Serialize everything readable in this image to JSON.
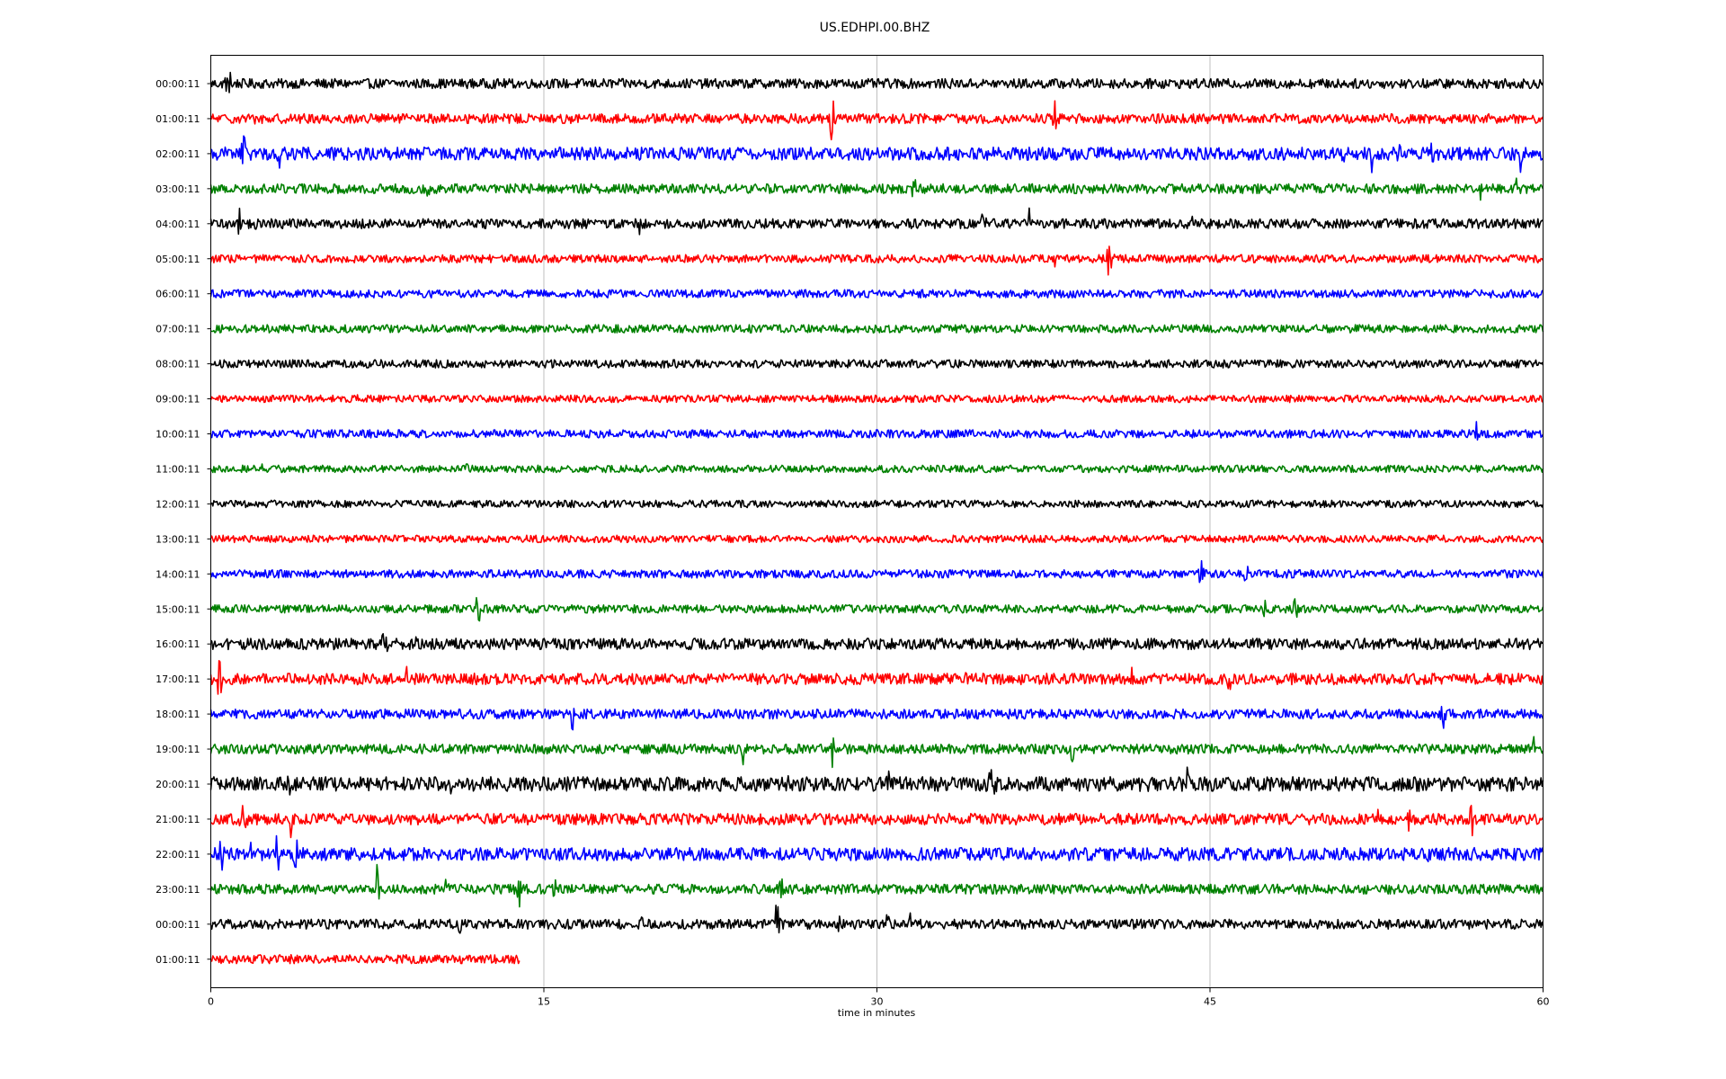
{
  "chart_data": {
    "type": "line",
    "title": "US.EDHPI.00.BHZ",
    "xlabel": "time in minutes",
    "ylabel": "",
    "xlim": [
      0,
      60
    ],
    "x_ticks": [
      "0",
      "15",
      "30",
      "45",
      "60"
    ],
    "x_tick_values": [
      0,
      15,
      30,
      45,
      60
    ],
    "grid": "vertical",
    "row_colors": [
      "#000000",
      "#ff0000",
      "#0000ff",
      "#008000"
    ],
    "rows": [
      {
        "label": "00:00:11",
        "end_minute": 60,
        "noise": 0.6,
        "bursts": [
          [
            0.8,
            7,
            0.9
          ],
          [
            42.5,
            5,
            0.7
          ],
          [
            58.3,
            2,
            0.5
          ]
        ]
      },
      {
        "label": "01:00:11",
        "end_minute": 60,
        "noise": 0.6,
        "bursts": [
          [
            2.0,
            2,
            0.6
          ],
          [
            28.0,
            7,
            1.2
          ],
          [
            38.0,
            6,
            1.0
          ]
        ]
      },
      {
        "label": "02:00:11",
        "end_minute": 60,
        "noise": 0.8,
        "bursts": [
          [
            1.5,
            6,
            1.5
          ],
          [
            3.1,
            5,
            0.8
          ],
          [
            4.3,
            3,
            0.7
          ],
          [
            8.3,
            3,
            0.6
          ],
          [
            16.5,
            3,
            0.9
          ],
          [
            27.8,
            5,
            1.2
          ],
          [
            51.0,
            4,
            1.0
          ],
          [
            52.3,
            3,
            0.8
          ],
          [
            53.5,
            6,
            1.5
          ],
          [
            55.0,
            3,
            0.7
          ],
          [
            59.0,
            4,
            1.5
          ]
        ]
      },
      {
        "label": "03:00:11",
        "end_minute": 60,
        "noise": 0.6,
        "bursts": [
          [
            2.0,
            3,
            0.7
          ],
          [
            9.8,
            5,
            1.0
          ],
          [
            31.7,
            6,
            1.3
          ],
          [
            57.2,
            3,
            0.8
          ],
          [
            58.8,
            2,
            0.5
          ]
        ]
      },
      {
        "label": "04:00:11",
        "end_minute": 60,
        "noise": 0.6,
        "bursts": [
          [
            1.3,
            4,
            1.2
          ],
          [
            2.0,
            3,
            0.7
          ],
          [
            19.3,
            2,
            0.5
          ],
          [
            34.8,
            8,
            1.0
          ],
          [
            36.9,
            4,
            1.0
          ],
          [
            44.2,
            2,
            0.5
          ]
        ]
      },
      {
        "label": "05:00:11",
        "end_minute": 60,
        "noise": 0.5,
        "bursts": [
          [
            38.0,
            4,
            0.8
          ],
          [
            40.5,
            10,
            1.0
          ]
        ]
      },
      {
        "label": "06:00:11",
        "end_minute": 60,
        "noise": 0.5,
        "bursts": []
      },
      {
        "label": "07:00:11",
        "end_minute": 60,
        "noise": 0.5,
        "bursts": []
      },
      {
        "label": "08:00:11",
        "end_minute": 60,
        "noise": 0.5,
        "bursts": []
      },
      {
        "label": "09:00:11",
        "end_minute": 60,
        "noise": 0.45,
        "bursts": [
          [
            6.6,
            2,
            0.4
          ]
        ]
      },
      {
        "label": "10:00:11",
        "end_minute": 60,
        "noise": 0.5,
        "bursts": [
          [
            57.0,
            3,
            0.6
          ]
        ]
      },
      {
        "label": "11:00:11",
        "end_minute": 60,
        "noise": 0.45,
        "bursts": [
          [
            2.3,
            2,
            0.5
          ],
          [
            11.5,
            3,
            0.4
          ]
        ]
      },
      {
        "label": "12:00:11",
        "end_minute": 60,
        "noise": 0.45,
        "bursts": [
          [
            40.2,
            2,
            0.4
          ]
        ]
      },
      {
        "label": "13:00:11",
        "end_minute": 60,
        "noise": 0.45,
        "bursts": []
      },
      {
        "label": "14:00:11",
        "end_minute": 60,
        "noise": 0.5,
        "bursts": [
          [
            44.6,
            6,
            0.9
          ],
          [
            46.5,
            12,
            0.6
          ]
        ]
      },
      {
        "label": "15:00:11",
        "end_minute": 60,
        "noise": 0.5,
        "bursts": [
          [
            12.0,
            6,
            1.4
          ],
          [
            47.5,
            5,
            0.7
          ],
          [
            48.8,
            6,
            1.0
          ]
        ]
      },
      {
        "label": "16:00:11",
        "end_minute": 60,
        "noise": 0.7,
        "bursts": [
          [
            1.9,
            3,
            0.7
          ],
          [
            7.8,
            8,
            0.9
          ],
          [
            9.2,
            3,
            1.0
          ],
          [
            58.2,
            4,
            0.8
          ]
        ]
      },
      {
        "label": "17:00:11",
        "end_minute": 60,
        "noise": 0.7,
        "bursts": [
          [
            0.4,
            6,
            1.4
          ],
          [
            8.8,
            4,
            0.9
          ],
          [
            30.0,
            3,
            1.0
          ],
          [
            34.0,
            5,
            0.9
          ],
          [
            41.5,
            3,
            0.7
          ],
          [
            45.9,
            5,
            0.8
          ]
        ]
      },
      {
        "label": "18:00:11",
        "end_minute": 60,
        "noise": 0.6,
        "bursts": [
          [
            11.3,
            3,
            0.6
          ],
          [
            16.3,
            4,
            0.9
          ],
          [
            48.5,
            3,
            0.5
          ],
          [
            55.5,
            5,
            1.0
          ]
        ]
      },
      {
        "label": "19:00:11",
        "end_minute": 60,
        "noise": 0.6,
        "bursts": [
          [
            24.0,
            6,
            1.2
          ],
          [
            28.0,
            4,
            1.1
          ],
          [
            38.8,
            6,
            1.3
          ],
          [
            59.6,
            3,
            1.0
          ]
        ]
      },
      {
        "label": "20:00:11",
        "end_minute": 60,
        "noise": 0.9,
        "bursts": [
          [
            3.6,
            5,
            1.4
          ],
          [
            11.0,
            18,
            0.5
          ],
          [
            26.0,
            4,
            1.2
          ],
          [
            30.5,
            5,
            0.9
          ],
          [
            35.0,
            20,
            0.8
          ],
          [
            44.0,
            6,
            1.1
          ]
        ]
      },
      {
        "label": "21:00:11",
        "end_minute": 60,
        "noise": 0.7,
        "bursts": [
          [
            1.5,
            15,
            0.7
          ],
          [
            3.6,
            3,
            1.2
          ],
          [
            24.2,
            3,
            0.7
          ],
          [
            52.5,
            4,
            1.0
          ],
          [
            54.0,
            4,
            0.8
          ],
          [
            56.8,
            5,
            1.1
          ]
        ]
      },
      {
        "label": "22:00:11",
        "end_minute": 60,
        "noise": 0.8,
        "bursts": [
          [
            0.5,
            8,
            0.8
          ],
          [
            1.8,
            4,
            0.7
          ],
          [
            3.0,
            6,
            1.0
          ],
          [
            3.8,
            6,
            1.2
          ],
          [
            54.8,
            4,
            1.2
          ]
        ]
      },
      {
        "label": "23:00:11",
        "end_minute": 60,
        "noise": 0.6,
        "bursts": [
          [
            7.5,
            6,
            1.3
          ],
          [
            10.6,
            5,
            0.9
          ],
          [
            13.9,
            6,
            0.9
          ],
          [
            15.5,
            4,
            0.8
          ],
          [
            20.0,
            3,
            0.5
          ],
          [
            25.7,
            4,
            1.4
          ]
        ]
      },
      {
        "label": "00:00:11",
        "end_minute": 60,
        "noise": 0.6,
        "bursts": [
          [
            11.2,
            3,
            0.9
          ],
          [
            19.5,
            5,
            0.8
          ],
          [
            25.5,
            6,
            1.2
          ],
          [
            28.3,
            4,
            0.9
          ],
          [
            30.5,
            5,
            0.9
          ],
          [
            31.5,
            3,
            0.9
          ]
        ]
      },
      {
        "label": "01:00:11",
        "end_minute": 13.9,
        "noise": 0.55,
        "bursts": []
      }
    ]
  }
}
